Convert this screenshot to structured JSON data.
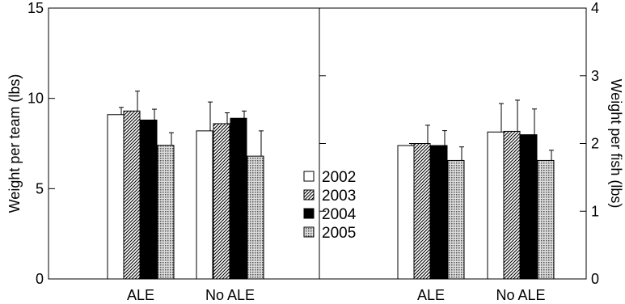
{
  "chart_data": [
    {
      "type": "bar",
      "panel": "left",
      "ylabel": "Weight per team (lbs)",
      "ylim": [
        0,
        15
      ],
      "yticks": [
        0,
        5,
        10,
        15
      ],
      "categories": [
        "ALE",
        "No ALE"
      ],
      "series": [
        {
          "name": "2002",
          "values": [
            9.1,
            8.2
          ],
          "errors": [
            0.4,
            1.6
          ]
        },
        {
          "name": "2003",
          "values": [
            9.3,
            8.6
          ],
          "errors": [
            1.1,
            0.6
          ]
        },
        {
          "name": "2004",
          "values": [
            8.8,
            8.9
          ],
          "errors": [
            0.6,
            0.4
          ]
        },
        {
          "name": "2005",
          "values": [
            7.4,
            6.8
          ],
          "errors": [
            0.7,
            1.4
          ]
        }
      ],
      "y_axis_side": "left",
      "grid": false
    },
    {
      "type": "bar",
      "panel": "right",
      "ylabel": "Weight per fish (lbs)",
      "ylim": [
        0,
        4
      ],
      "yticks": [
        0,
        1,
        2,
        3,
        4
      ],
      "categories": [
        "ALE",
        "No ALE"
      ],
      "series": [
        {
          "name": "2002",
          "values": [
            1.97,
            2.17
          ],
          "errors": [
            0.03,
            0.42
          ]
        },
        {
          "name": "2003",
          "values": [
            2.0,
            2.18
          ],
          "errors": [
            0.27,
            0.46
          ]
        },
        {
          "name": "2004",
          "values": [
            1.97,
            2.13
          ],
          "errors": [
            0.22,
            0.38
          ]
        },
        {
          "name": "2005",
          "values": [
            1.75,
            1.75
          ],
          "errors": [
            0.2,
            0.15
          ]
        }
      ],
      "y_axis_side": "right",
      "grid": false
    }
  ],
  "legend": {
    "placement": "center-bottom",
    "entries": [
      "2002",
      "2003",
      "2004",
      "2005"
    ]
  },
  "series_fills": [
    "white",
    "diagonal-hatch",
    "black",
    "dotted-gray"
  ]
}
